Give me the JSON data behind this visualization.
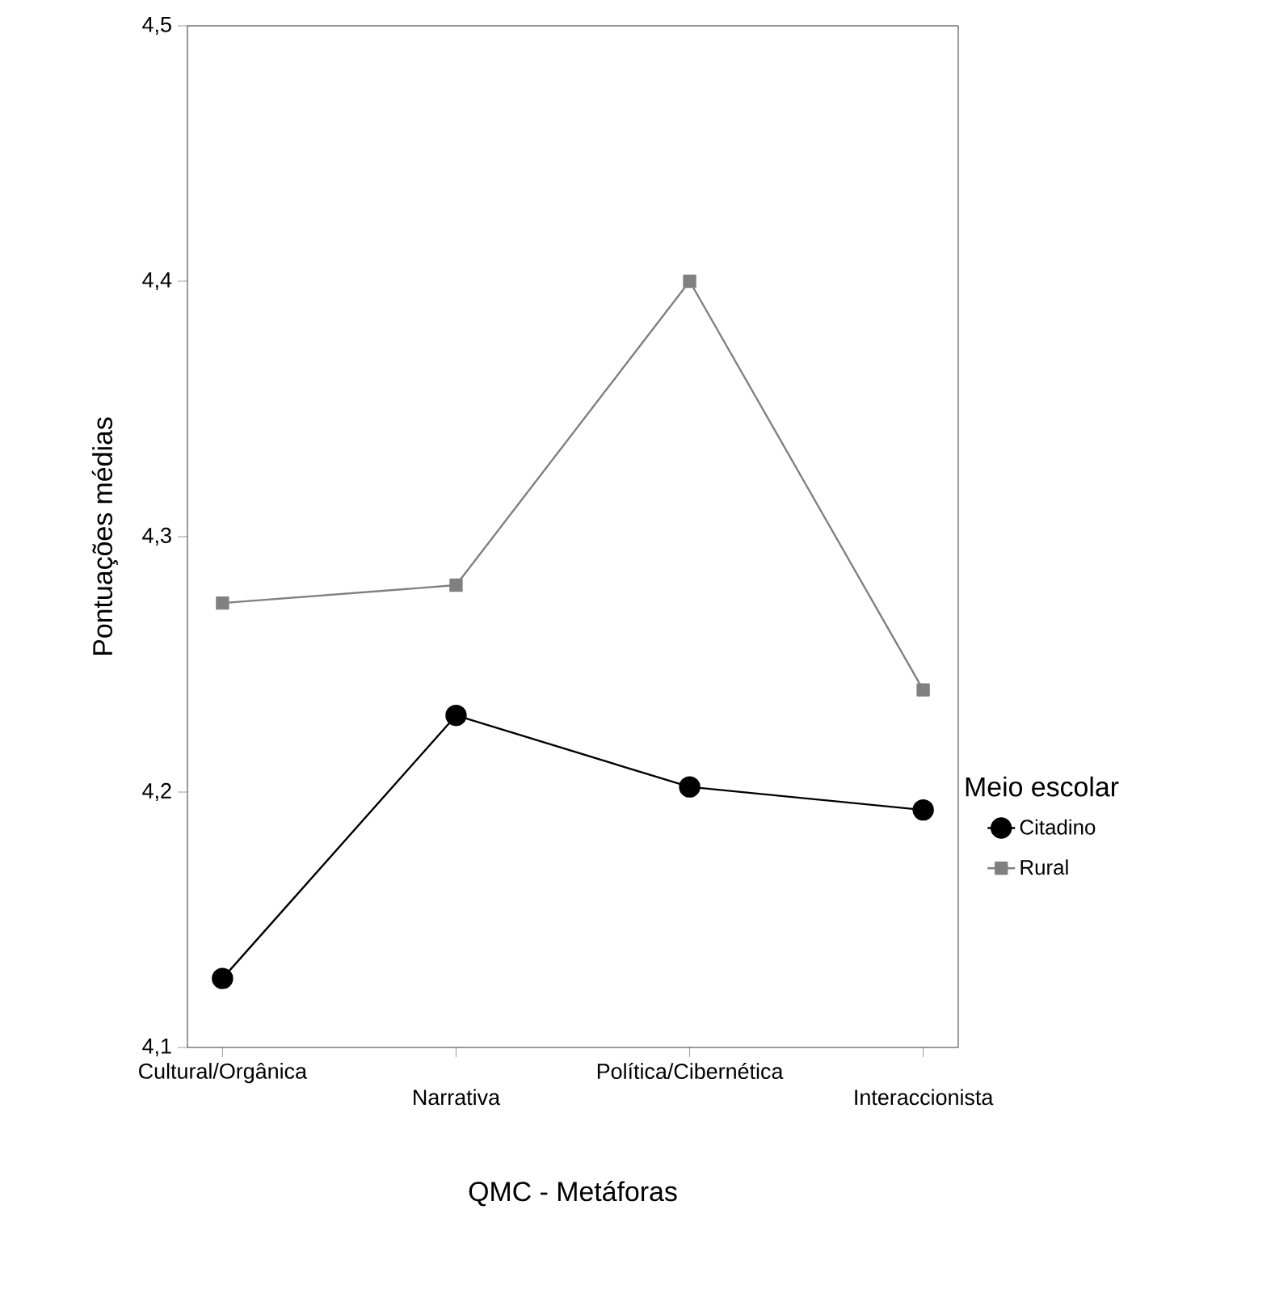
{
  "chart_data": {
    "type": "line",
    "xlabel": "QMC - Metáforas",
    "ylabel": "Pontuações médias",
    "legend_title": "Meio escolar",
    "categories": [
      "Cultural/Orgânica",
      "Narrativa",
      "Política/Cibernética",
      "Interaccionista"
    ],
    "series": [
      {
        "name": "Citadino",
        "color": "#000000",
        "marker": "circle",
        "values": [
          4.127,
          4.23,
          4.202,
          4.193
        ]
      },
      {
        "name": "Rural",
        "color": "#808080",
        "marker": "square",
        "values": [
          4.274,
          4.281,
          4.4,
          4.24
        ]
      }
    ],
    "ylim": [
      4.1,
      4.5
    ],
    "yticks": [
      {
        "value": 4.1,
        "label": "4,1"
      },
      {
        "value": 4.2,
        "label": "4,2"
      },
      {
        "value": 4.3,
        "label": "4,3"
      },
      {
        "value": 4.4,
        "label": "4,4"
      },
      {
        "value": 4.5,
        "label": "4,5"
      }
    ],
    "grid": false,
    "legend": "right",
    "line_style": "solid"
  }
}
